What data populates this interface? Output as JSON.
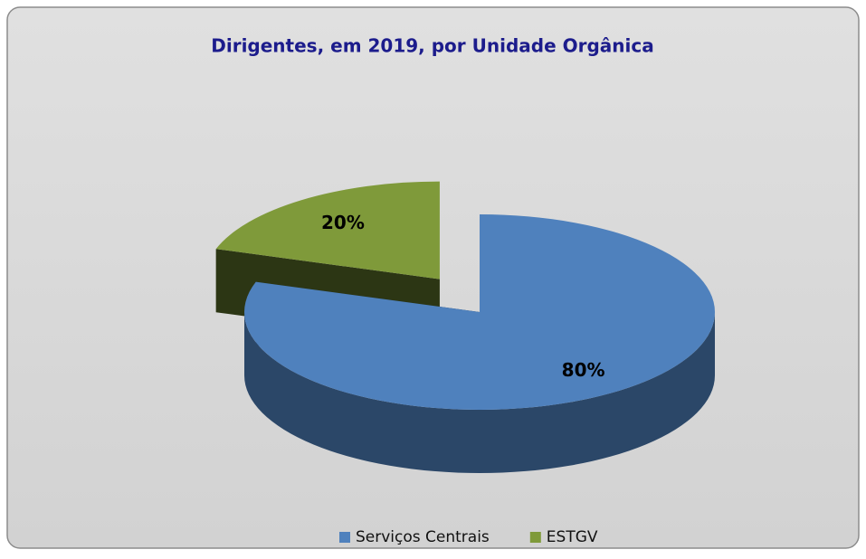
{
  "chart_data": {
    "type": "pie",
    "title": "Dirigentes, em 2019, por Unidade Orgânica",
    "categories": [
      "Serviços Centrais",
      "ESTGV"
    ],
    "values": [
      80,
      20
    ],
    "value_labels": [
      "80%",
      "20%"
    ],
    "colors": [
      "#4f81bd",
      "#7f9a3a"
    ],
    "legend": "bottom"
  }
}
